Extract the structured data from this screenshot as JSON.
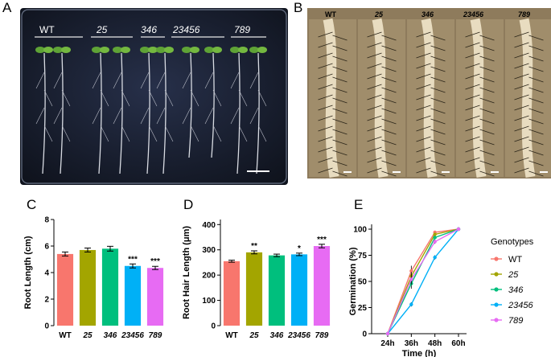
{
  "panel_letters": {
    "A": "A",
    "B": "B",
    "C": "C",
    "D": "D",
    "E": "E"
  },
  "genotypes": [
    "WT",
    "25",
    "346",
    "23456",
    "789"
  ],
  "colors": {
    "WT": "#f8766d",
    "25": "#a3a500",
    "346": "#00bf7d",
    "23456": "#00b0f6",
    "789": "#e76bf3",
    "plate_bg": "#1a2130",
    "microscopy_bg": "#a08d6b"
  },
  "panel_a": {
    "labels": [
      "WT",
      "25",
      "346",
      "23456",
      "789"
    ]
  },
  "panel_b": {
    "labels": [
      "WT",
      "25",
      "346",
      "23456",
      "789"
    ]
  },
  "chart_data": [
    {
      "panel": "C",
      "type": "bar",
      "categories": [
        "WT",
        "25",
        "346",
        "23456",
        "789"
      ],
      "values": [
        5.4,
        5.7,
        5.8,
        4.5,
        4.35
      ],
      "errors": [
        0.15,
        0.15,
        0.18,
        0.15,
        0.12
      ],
      "significance": [
        "",
        "",
        "",
        "***",
        "***"
      ],
      "ylabel": "Root Length (cm)",
      "xlabel": "",
      "ylim": [
        0,
        8
      ],
      "yticks": [
        0,
        2,
        4,
        6,
        8
      ]
    },
    {
      "panel": "D",
      "type": "bar",
      "categories": [
        "WT",
        "25",
        "346",
        "23456",
        "789"
      ],
      "values": [
        255,
        290,
        278,
        282,
        315
      ],
      "errors": [
        4,
        6,
        5,
        5,
        7
      ],
      "significance": [
        "",
        "**",
        "",
        "*",
        "***"
      ],
      "ylabel": "Root Hair Length (μm)",
      "xlabel": "",
      "ylim": [
        0,
        420
      ],
      "yticks": [
        0,
        100,
        200,
        300,
        400
      ]
    },
    {
      "panel": "E",
      "type": "line",
      "x": [
        "24h",
        "36h",
        "48h",
        "60h"
      ],
      "series": [
        {
          "name": "WT",
          "values": [
            0,
            60,
            97,
            100
          ]
        },
        {
          "name": "25",
          "values": [
            0,
            55,
            95,
            100
          ]
        },
        {
          "name": "346",
          "values": [
            0,
            48,
            92,
            100
          ]
        },
        {
          "name": "23456",
          "values": [
            0,
            28,
            73,
            100
          ]
        },
        {
          "name": "789",
          "values": [
            0,
            52,
            88,
            100
          ]
        }
      ],
      "errors": [
        [
          0,
          5,
          1,
          0
        ],
        [
          0,
          4,
          1,
          0
        ],
        [
          0,
          5,
          1,
          0
        ],
        [
          0,
          2,
          2,
          0
        ],
        [
          0,
          5,
          2,
          0
        ]
      ],
      "xlabel": "Time (h)",
      "ylabel": "Germination (%)",
      "ylim": [
        0,
        100
      ],
      "yticks": [
        0,
        25,
        50,
        75,
        100
      ],
      "legend_title": "Genotypes",
      "legend_position": "right"
    }
  ]
}
